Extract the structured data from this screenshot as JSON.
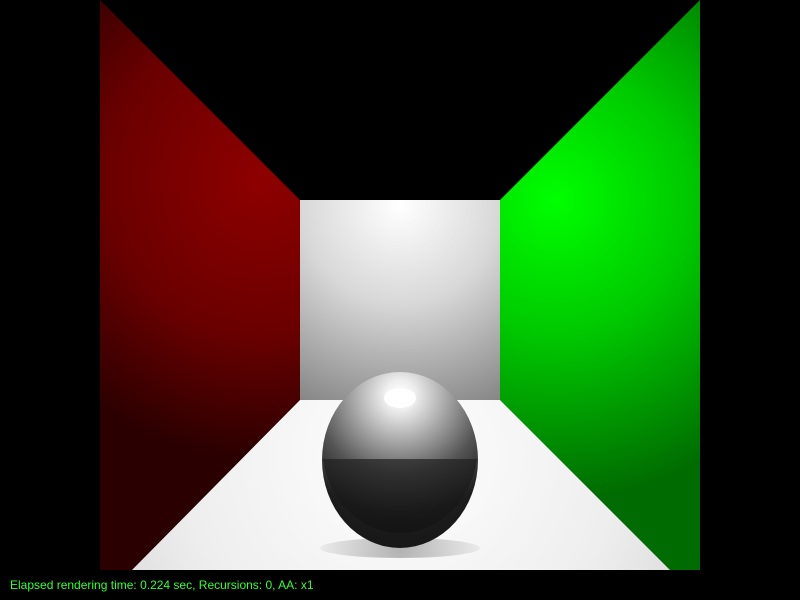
{
  "window": {
    "background_color": "#000000"
  },
  "scene": {
    "left_wall_color": "#8b0000",
    "right_wall_color": "#00ff00",
    "back_wall_color": "#ffffff",
    "floor_color": "#ffffff",
    "sphere_color": "#1a1a1a"
  },
  "status": {
    "text": "Elapsed rendering time: 0.224 sec, Recursions: 0, AA: x1",
    "color": "#33ff33"
  }
}
